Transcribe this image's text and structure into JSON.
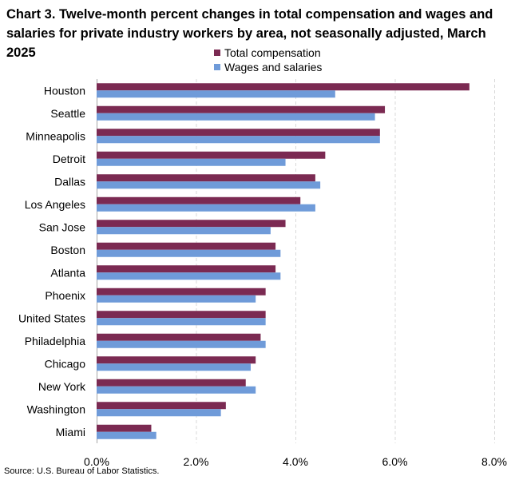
{
  "title": "Chart 3. Twelve-month percent changes in total compensation and wages and salaries for private industry workers by area, not seasonally adjusted, March 2025",
  "source": "Source: U.S. Bureau of Labor Statistics.",
  "colors": {
    "total": "#7b2a52",
    "wages": "#6f9bd9",
    "grid": "#d9d9d9",
    "axis": "#a6a6a6"
  },
  "chart_data": {
    "type": "bar",
    "orientation": "horizontal",
    "title": "Chart 3. Twelve-month percent changes in total compensation and wages and salaries for private industry workers by area, not seasonally adjusted, March 2025",
    "categories": [
      "Houston",
      "Seattle",
      "Minneapolis",
      "Detroit",
      "Dallas",
      "Los Angeles",
      "San Jose",
      "Boston",
      "Atlanta",
      "Phoenix",
      "United States",
      "Philadelphia",
      "Chicago",
      "New York",
      "Washington",
      "Miami"
    ],
    "series": [
      {
        "name": "Total compensation",
        "values": [
          7.5,
          5.8,
          5.7,
          4.6,
          4.4,
          4.1,
          3.8,
          3.6,
          3.6,
          3.4,
          3.4,
          3.3,
          3.2,
          3.0,
          2.6,
          1.1
        ]
      },
      {
        "name": "Wages and salaries",
        "values": [
          4.8,
          5.6,
          5.7,
          3.8,
          4.5,
          4.4,
          3.5,
          3.7,
          3.7,
          3.2,
          3.4,
          3.4,
          3.1,
          3.2,
          2.5,
          1.2
        ]
      }
    ],
    "xlim": [
      0,
      8
    ],
    "xticks": [
      0,
      2,
      4,
      6,
      8
    ],
    "xtick_labels": [
      "0.0%",
      "2.0%",
      "4.0%",
      "6.0%",
      "8.0%"
    ],
    "xlabel": "",
    "ylabel": "",
    "grid": "vertical dashed",
    "legend": "top-center"
  }
}
